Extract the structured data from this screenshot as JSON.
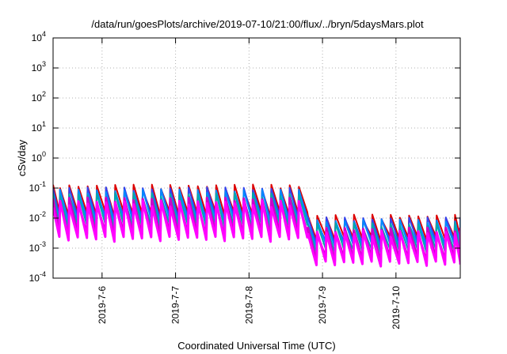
{
  "chart_data": {
    "type": "line",
    "title": "/data/run/goesPlots/archive/2019-07-10/21:00/flux/../bryn/5daysMars.plot",
    "xlabel": "Coordinated Universal Time (UTC)",
    "ylabel": "cSv/day",
    "y_scale": "log",
    "ylim": [
      0.0001,
      10000
    ],
    "y_ticks": [
      {
        "base": "10",
        "exp": "-4"
      },
      {
        "base": "10",
        "exp": "-3"
      },
      {
        "base": "10",
        "exp": "-2"
      },
      {
        "base": "10",
        "exp": "-1"
      },
      {
        "base": "10",
        "exp": "0"
      },
      {
        "base": "10",
        "exp": "1"
      },
      {
        "base": "10",
        "exp": "2"
      },
      {
        "base": "10",
        "exp": "3"
      },
      {
        "base": "10",
        "exp": "4"
      }
    ],
    "xlim": [
      "2019-07-05 08:00",
      "2019-07-10 21:00"
    ],
    "x_ticks": [
      "2019-7-6",
      "2019-7-7",
      "2019-7-8",
      "2019-7-9",
      "2019-7-10"
    ],
    "grid": true,
    "legend": "none",
    "series_colors": [
      "#ff00ff",
      "#cc00cc",
      "#00aaaa",
      "#0088ff",
      "#3344ee",
      "#dd0000"
    ],
    "pattern": {
      "cycles_per_day": 8,
      "regime_change": "2019-07-08 18:00",
      "before_step_peak": 0.1,
      "after_step_peak": 0.01,
      "magenta_trough_before": 0.002,
      "magenta_trough_after": 0.0003
    }
  }
}
